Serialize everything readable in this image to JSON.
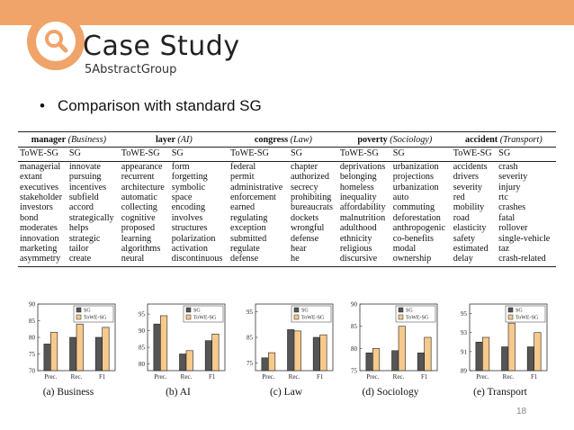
{
  "header": {
    "title": "Case Study",
    "subtitle": "5AbstractGroup",
    "icon": "magnifier-icon",
    "accent": "#f0a469"
  },
  "bullet": {
    "text": "Comparison with standard SG"
  },
  "table": {
    "groups": [
      {
        "name": "manager",
        "domain": "(Business)"
      },
      {
        "name": "layer",
        "domain": "(AI)"
      },
      {
        "name": "congress",
        "domain": "(Law)"
      },
      {
        "name": "poverty",
        "domain": "(Sociology)"
      },
      {
        "name": "accident",
        "domain": "(Transport)"
      }
    ],
    "subheaders": [
      "ToWE-SG",
      "SG",
      "ToWE-SG",
      "SG",
      "ToWE-SG",
      "SG",
      "ToWE-SG",
      "SG",
      "ToWE-SG",
      "SG"
    ],
    "rows": [
      [
        "managerial",
        "innovate",
        "appearance",
        "form",
        "federal",
        "chapter",
        "deprivations",
        "urbanization",
        "accidents",
        "crash"
      ],
      [
        "extant",
        "pursuing",
        "recurrent",
        "forgetting",
        "permit",
        "authorized",
        "belonging",
        "projections",
        "drivers",
        "severity"
      ],
      [
        "executives",
        "incentives",
        "architecture",
        "symbolic",
        "administrative",
        "secrecy",
        "homeless",
        "urbanization",
        "severity",
        "injury"
      ],
      [
        "stakeholder",
        "subfield",
        "automatic",
        "space",
        "enforcement",
        "prohibiting",
        "inequality",
        "auto",
        "red",
        "rtc"
      ],
      [
        "investors",
        "accord",
        "collecting",
        "encoding",
        "earned",
        "bureaucrats",
        "affordability",
        "commuting",
        "mobility",
        "crashes"
      ],
      [
        "bond",
        "strategically",
        "cognitive",
        "involves",
        "regulating",
        "dockets",
        "malnutrition",
        "deforestation",
        "road",
        "fatal"
      ],
      [
        "moderates",
        "helps",
        "proposed",
        "structures",
        "exception",
        "wrongful",
        "adulthood",
        "anthropogenic",
        "elasticity",
        "rollover"
      ],
      [
        "innovation",
        "strategic",
        "learning",
        "polarization",
        "submitted",
        "defense",
        "ethnicity",
        "co-benefits",
        "safety",
        "single-vehicle"
      ],
      [
        "marketing",
        "tailor",
        "algorithms",
        "activation",
        "regulate",
        "hear",
        "religious",
        "modal",
        "estimated",
        "taz"
      ],
      [
        "asymmetry",
        "create",
        "neural",
        "discontinuous",
        "defense",
        "he",
        "discursive",
        "ownership",
        "delay",
        "crash-related"
      ]
    ]
  },
  "chart_data": [
    {
      "type": "bar",
      "categories": [
        "Prec.",
        "Rec.",
        "F1"
      ],
      "series": [
        {
          "name": "SG",
          "values": [
            78,
            80,
            80
          ]
        },
        {
          "name": "ToWE-SG",
          "values": [
            81.5,
            84,
            83
          ]
        }
      ],
      "ylim": [
        70,
        90
      ],
      "yticks": [
        70,
        75,
        80,
        85,
        90
      ],
      "caption": "(a) Business",
      "colors": [
        "#555555",
        "#f6c98c"
      ],
      "legend": "top-right"
    },
    {
      "type": "bar",
      "categories": [
        "Prec.",
        "Rec.",
        "F1"
      ],
      "series": [
        {
          "name": "SG",
          "values": [
            92,
            83,
            87
          ]
        },
        {
          "name": "ToWE-SG",
          "values": [
            94.5,
            84,
            89
          ]
        }
      ],
      "ylim": [
        78,
        98
      ],
      "yticks": [
        80,
        85,
        90,
        95
      ],
      "caption": "(b) AI",
      "colors": [
        "#555555",
        "#f6c98c"
      ],
      "legend": "top-right"
    },
    {
      "type": "bar",
      "categories": [
        "Prec.",
        "Rec.",
        "F1"
      ],
      "series": [
        {
          "name": "SG",
          "values": [
            77,
            88,
            85
          ]
        },
        {
          "name": "ToWE-SG",
          "values": [
            79,
            87.5,
            86
          ]
        }
      ],
      "ylim": [
        72,
        98
      ],
      "yticks": [
        75,
        85,
        95
      ],
      "caption": "(c) Law",
      "colors": [
        "#555555",
        "#f6c98c"
      ],
      "legend": "top-right"
    },
    {
      "type": "bar",
      "categories": [
        "Prec.",
        "Rec.",
        "F1"
      ],
      "series": [
        {
          "name": "SG",
          "values": [
            79,
            79.5,
            79
          ]
        },
        {
          "name": "ToWE-SG",
          "values": [
            80,
            85,
            82.5
          ]
        }
      ],
      "ylim": [
        75,
        90
      ],
      "yticks": [
        75,
        80,
        85,
        90
      ],
      "caption": "(d) Sociology",
      "colors": [
        "#555555",
        "#f6c98c"
      ],
      "legend": "top-right"
    },
    {
      "type": "bar",
      "categories": [
        "Prec.",
        "Rec.",
        "F1"
      ],
      "series": [
        {
          "name": "SG",
          "values": [
            92,
            91.5,
            91.5
          ]
        },
        {
          "name": "ToWE-SG",
          "values": [
            92.5,
            94,
            93
          ]
        }
      ],
      "ylim": [
        89,
        96
      ],
      "yticks": [
        89,
        91,
        93,
        95
      ],
      "caption": "(e) Transport",
      "colors": [
        "#555555",
        "#f6c98c"
      ],
      "legend": "top-right"
    }
  ],
  "footer": {
    "page_number": "18"
  }
}
